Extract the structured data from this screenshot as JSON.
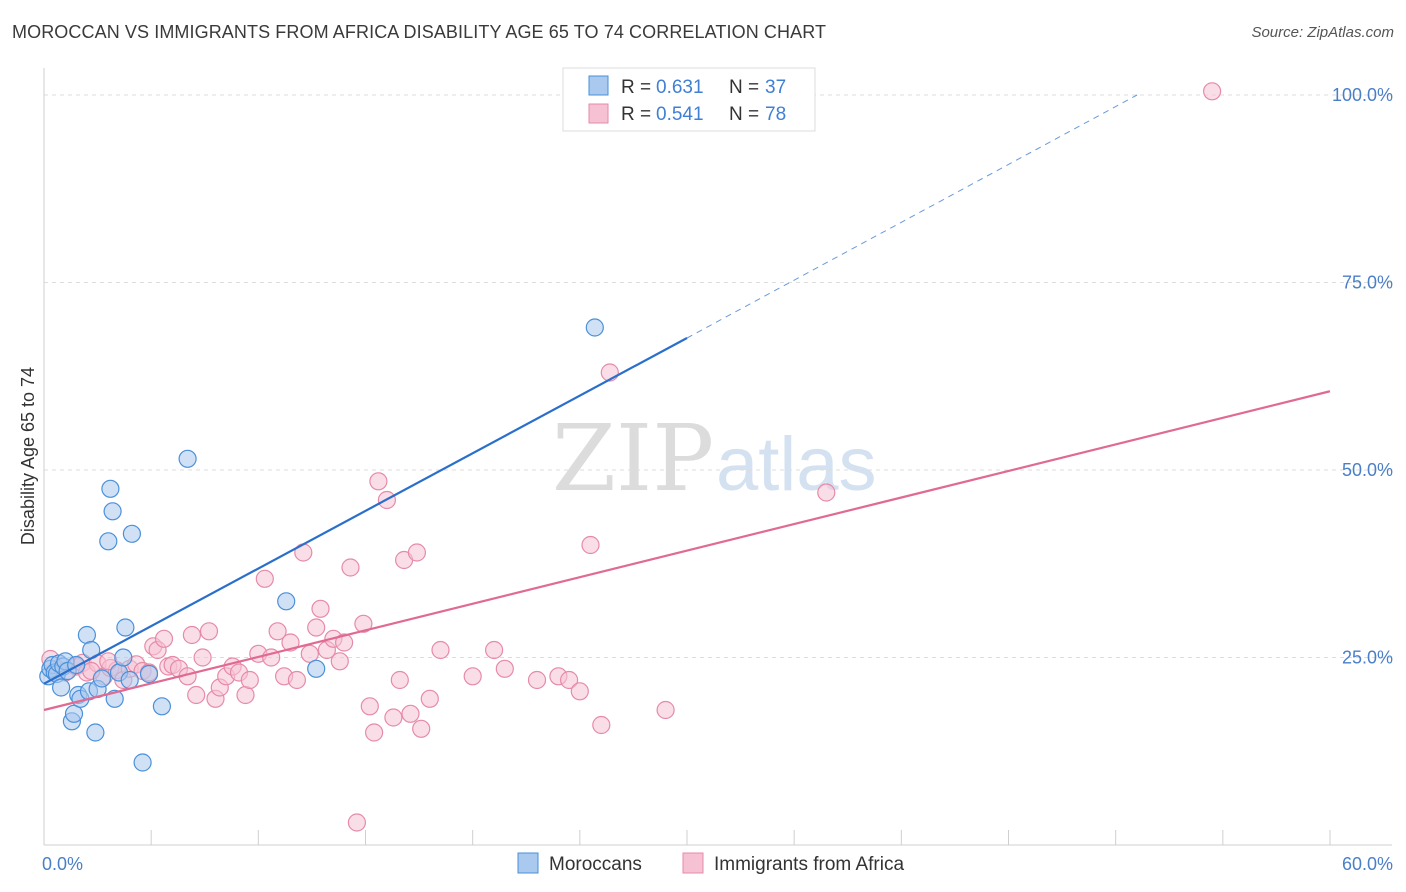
{
  "header": {
    "title": "MOROCCAN VS IMMIGRANTS FROM AFRICA DISABILITY AGE 65 TO 74 CORRELATION CHART",
    "source": "Source: ZipAtlas.com"
  },
  "watermark": {
    "zip": "ZIP",
    "atlas": "atlas"
  },
  "colors": {
    "blue": "#4a90d9",
    "blue_fill": "#a9c9ef",
    "blue_line": "#2a6fcc",
    "pink": "#e68aa8",
    "pink_fill": "#f6c2d3",
    "pink_line": "#e06a92",
    "tick_text": "#4a7fc8",
    "grid": "#dddddd"
  },
  "stats": [
    {
      "r_label": "R =",
      "r": "0.631",
      "n_label": "N =",
      "n": "37"
    },
    {
      "r_label": "R =",
      "r": "0.541",
      "n_label": "N =",
      "n": "78"
    }
  ],
  "chart_data": {
    "type": "scatter",
    "title": "MOROCCAN VS IMMIGRANTS FROM AFRICA DISABILITY AGE 65 TO 74 CORRELATION CHART",
    "xlabel": "",
    "ylabel": "Disability Age 65 to 74",
    "xlim": [
      0,
      60
    ],
    "ylim": [
      0,
      102
    ],
    "x_tick_labels": [
      {
        "value": 0,
        "label": "0.0%"
      },
      {
        "value": 60,
        "label": "60.0%"
      }
    ],
    "y_tick_labels": [
      {
        "value": 25,
        "label": "25.0%"
      },
      {
        "value": 50,
        "label": "50.0%"
      },
      {
        "value": 75,
        "label": "75.0%"
      },
      {
        "value": 100,
        "label": "100.0%"
      }
    ],
    "legend": [
      "Moroccans",
      "Immigrants from Africa"
    ],
    "series": [
      {
        "name": "Moroccans",
        "r": 0.631,
        "n": 37,
        "trend": {
          "x0": 0,
          "y0": 21.5,
          "x1": 30,
          "y1": 67.6,
          "dashed_to_x": 51,
          "dashed_to_y": 100
        },
        "points": [
          [
            0.2,
            22.5
          ],
          [
            0.3,
            23.5
          ],
          [
            0.4,
            24.0
          ],
          [
            0.5,
            23.0
          ],
          [
            0.6,
            22.8
          ],
          [
            0.7,
            24.2
          ],
          [
            0.8,
            21.0
          ],
          [
            0.9,
            23.8
          ],
          [
            1.0,
            24.5
          ],
          [
            1.1,
            23.2
          ],
          [
            1.3,
            16.5
          ],
          [
            1.4,
            17.5
          ],
          [
            1.5,
            24.0
          ],
          [
            1.6,
            20.0
          ],
          [
            1.7,
            19.5
          ],
          [
            2.0,
            28.0
          ],
          [
            2.1,
            20.5
          ],
          [
            2.2,
            26.0
          ],
          [
            2.4,
            15.0
          ],
          [
            2.5,
            20.8
          ],
          [
            2.7,
            22.2
          ],
          [
            3.0,
            40.5
          ],
          [
            3.1,
            47.5
          ],
          [
            3.2,
            44.5
          ],
          [
            3.3,
            19.5
          ],
          [
            3.5,
            23.0
          ],
          [
            3.7,
            25.0
          ],
          [
            3.8,
            29.0
          ],
          [
            4.0,
            22.0
          ],
          [
            4.1,
            41.5
          ],
          [
            4.6,
            11.0
          ],
          [
            4.9,
            22.8
          ],
          [
            5.5,
            18.5
          ],
          [
            6.7,
            51.5
          ],
          [
            11.3,
            32.5
          ],
          [
            12.7,
            23.5
          ],
          [
            25.7,
            69.0
          ]
        ]
      },
      {
        "name": "Immigrants from Africa",
        "r": 0.541,
        "n": 78,
        "trend": {
          "x0": 0,
          "y0": 18.0,
          "x1": 60,
          "y1": 60.5
        },
        "points": [
          [
            0.3,
            24.8
          ],
          [
            0.6,
            23.5
          ],
          [
            1.0,
            23.0
          ],
          [
            1.5,
            23.8
          ],
          [
            1.8,
            24.3
          ],
          [
            2.0,
            23.0
          ],
          [
            2.5,
            24.2
          ],
          [
            2.8,
            22.5
          ],
          [
            3.1,
            23.6
          ],
          [
            3.4,
            23.3
          ],
          [
            3.7,
            22.0
          ],
          [
            4.0,
            23.5
          ],
          [
            4.3,
            24.1
          ],
          [
            4.6,
            23.2
          ],
          [
            4.9,
            23.0
          ],
          [
            5.1,
            26.5
          ],
          [
            5.3,
            26.0
          ],
          [
            5.6,
            27.5
          ],
          [
            5.8,
            23.8
          ],
          [
            6.0,
            24.0
          ],
          [
            6.3,
            23.5
          ],
          [
            6.7,
            22.5
          ],
          [
            6.9,
            28.0
          ],
          [
            7.1,
            20.0
          ],
          [
            7.4,
            25.0
          ],
          [
            7.7,
            28.5
          ],
          [
            8.0,
            19.5
          ],
          [
            8.2,
            21.0
          ],
          [
            8.5,
            22.5
          ],
          [
            8.8,
            23.8
          ],
          [
            9.1,
            23.0
          ],
          [
            9.4,
            20.0
          ],
          [
            9.6,
            22.0
          ],
          [
            10.0,
            25.5
          ],
          [
            10.3,
            35.5
          ],
          [
            10.6,
            25.0
          ],
          [
            10.9,
            28.5
          ],
          [
            11.2,
            22.5
          ],
          [
            11.5,
            27.0
          ],
          [
            11.8,
            22.0
          ],
          [
            12.1,
            39.0
          ],
          [
            12.4,
            25.5
          ],
          [
            12.7,
            29.0
          ],
          [
            12.9,
            31.5
          ],
          [
            13.2,
            26.0
          ],
          [
            13.5,
            27.5
          ],
          [
            13.8,
            24.5
          ],
          [
            14.0,
            27.0
          ],
          [
            14.3,
            37.0
          ],
          [
            14.6,
            3.0
          ],
          [
            14.9,
            29.5
          ],
          [
            15.2,
            18.5
          ],
          [
            15.4,
            15.0
          ],
          [
            15.6,
            48.5
          ],
          [
            16.0,
            46.0
          ],
          [
            16.3,
            17.0
          ],
          [
            16.6,
            22.0
          ],
          [
            16.8,
            38.0
          ],
          [
            17.1,
            17.5
          ],
          [
            17.4,
            39.0
          ],
          [
            17.6,
            15.5
          ],
          [
            18.0,
            19.5
          ],
          [
            18.5,
            26.0
          ],
          [
            20.0,
            22.5
          ],
          [
            21.0,
            26.0
          ],
          [
            21.5,
            23.5
          ],
          [
            23.0,
            22.0
          ],
          [
            24.0,
            22.5
          ],
          [
            24.5,
            22.0
          ],
          [
            25.0,
            20.5
          ],
          [
            25.5,
            40.0
          ],
          [
            26.0,
            16.0
          ],
          [
            26.4,
            63.0
          ],
          [
            29.0,
            18.0
          ],
          [
            36.5,
            47.0
          ],
          [
            54.5,
            100.5
          ],
          [
            2.2,
            23.2
          ],
          [
            3.0,
            24.5
          ]
        ]
      }
    ]
  }
}
